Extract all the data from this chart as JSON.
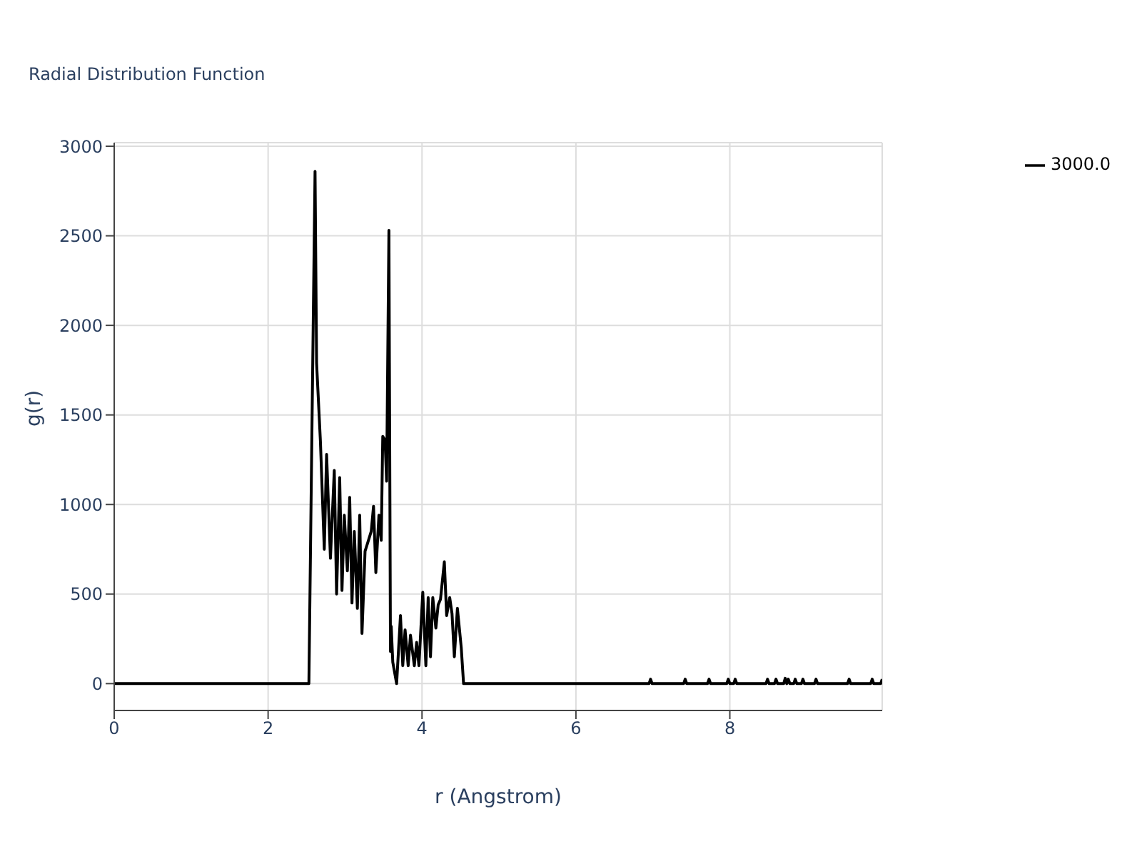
{
  "chart_data": {
    "type": "line",
    "title": "Radial Distribution Function",
    "xlabel": "r (Angstrom)",
    "ylabel": "g(r)",
    "xlim": [
      0,
      9.98
    ],
    "xticks": [
      0,
      2,
      4,
      6,
      8
    ],
    "ylim": [
      -150,
      3020
    ],
    "yticks": [
      0,
      500,
      1000,
      1500,
      2000,
      2500,
      3000
    ],
    "grid": true,
    "legend": "top right",
    "marker": "none",
    "line_style": "solid",
    "series": [
      {
        "name": "3000.0",
        "color": "#000000",
        "x": [
          0,
          2.53,
          2.61,
          2.63,
          2.68,
          2.73,
          2.76,
          2.81,
          2.86,
          2.89,
          2.93,
          2.96,
          2.99,
          3.03,
          3.06,
          3.09,
          3.12,
          3.16,
          3.19,
          3.22,
          3.26,
          3.29,
          3.34,
          3.37,
          3.4,
          3.44,
          3.47,
          3.49,
          3.52,
          3.54,
          3.57,
          3.59,
          3.6,
          3.62,
          3.67,
          3.72,
          3.75,
          3.78,
          3.82,
          3.85,
          3.9,
          3.93,
          3.96,
          4.01,
          4.05,
          4.08,
          4.11,
          4.14,
          4.18,
          4.21,
          4.24,
          4.29,
          4.32,
          4.36,
          4.39,
          4.42,
          4.46,
          4.51,
          4.54,
          6.95,
          6.97,
          6.99,
          7.4,
          7.42,
          7.44,
          7.71,
          7.73,
          7.75,
          7.96,
          7.98,
          8.0,
          8.05,
          8.07,
          8.09,
          8.47,
          8.49,
          8.51,
          8.58,
          8.6,
          8.62,
          8.7,
          8.72,
          8.74,
          8.76,
          8.78,
          8.83,
          8.85,
          8.87,
          8.93,
          8.95,
          8.97,
          9.1,
          9.12,
          9.14,
          9.53,
          9.55,
          9.57,
          9.83,
          9.85,
          9.87,
          9.96,
          9.98
        ],
        "values": [
          0,
          0,
          2860,
          1790,
          1350,
          750,
          1280,
          700,
          1190,
          500,
          1150,
          520,
          940,
          630,
          1040,
          450,
          850,
          420,
          940,
          280,
          740,
          780,
          850,
          990,
          620,
          940,
          800,
          1380,
          1360,
          1130,
          2530,
          180,
          320,
          120,
          0,
          380,
          100,
          300,
          100,
          270,
          100,
          230,
          100,
          510,
          100,
          480,
          150,
          480,
          310,
          440,
          470,
          680,
          380,
          480,
          390,
          150,
          420,
          200,
          0,
          0,
          25,
          0,
          0,
          25,
          0,
          0,
          25,
          0,
          0,
          25,
          0,
          0,
          25,
          0,
          0,
          25,
          0,
          0,
          25,
          0,
          0,
          30,
          0,
          25,
          0,
          0,
          25,
          0,
          0,
          25,
          0,
          0,
          25,
          0,
          0,
          25,
          0,
          0,
          25,
          0,
          0,
          25
        ]
      }
    ]
  }
}
